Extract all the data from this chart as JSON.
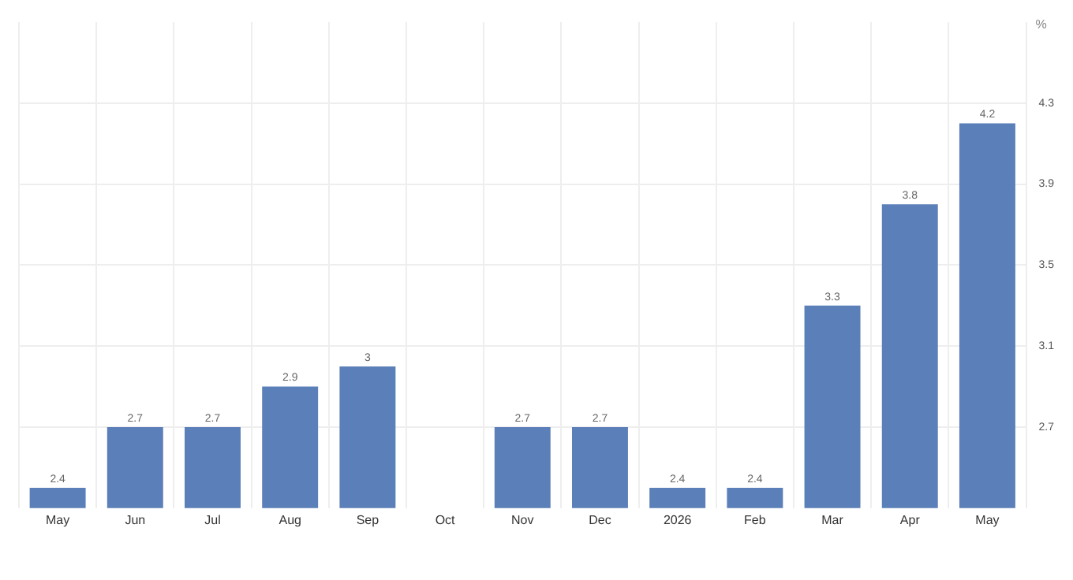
{
  "chart_data": {
    "type": "bar",
    "ylabel": "%",
    "categories": [
      "May",
      "Jun",
      "Jul",
      "Aug",
      "Sep",
      "Oct",
      "Nov",
      "Dec",
      "2026",
      "Feb",
      "Mar",
      "Apr",
      "May"
    ],
    "values": [
      2.4,
      2.7,
      2.7,
      2.9,
      3,
      null,
      2.7,
      2.7,
      2.4,
      2.4,
      3.3,
      3.8,
      4.2
    ],
    "color": "#5b7fb8",
    "ylim": [
      2.3,
      4.7
    ],
    "yticks": [
      2.7,
      3.1,
      3.5,
      3.9,
      4.3
    ],
    "grid": true,
    "data_labels": true
  }
}
